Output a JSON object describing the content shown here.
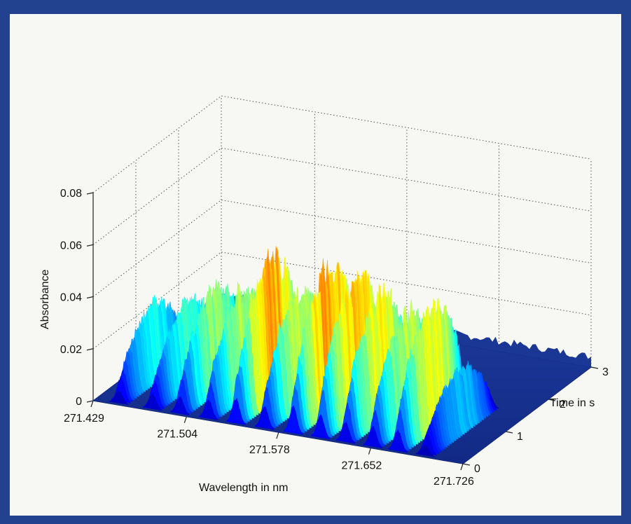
{
  "chart_data": {
    "type": "surface3d",
    "xlabel": "Wavelength in nm",
    "ylabel": "Time in s",
    "zlabel": "Absorbance",
    "x_ticks": [
      "271.429",
      "271.504",
      "271.578",
      "271.652",
      "271.726"
    ],
    "y_ticks": [
      "0",
      "1",
      "2",
      "3"
    ],
    "z_ticks": [
      "0",
      "0.02",
      "0.04",
      "0.06",
      "0.08"
    ],
    "xlim": [
      271.429,
      271.726
    ],
    "ylim": [
      0,
      3
    ],
    "zlim": [
      0,
      0.08
    ],
    "grid": true,
    "colormap": "jet",
    "peak_wavelengths": [
      271.448,
      271.475,
      271.497,
      271.52,
      271.542,
      271.565,
      271.588,
      271.61,
      271.63,
      271.652,
      271.672,
      271.694
    ],
    "peak_absorbances": [
      0.032,
      0.035,
      0.043,
      0.046,
      0.061,
      0.049,
      0.062,
      0.059,
      0.052,
      0.047,
      0.052,
      0.026
    ],
    "peak_width_nm": 0.0075,
    "peak_time_span_s": [
      0.05,
      1.55
    ]
  }
}
